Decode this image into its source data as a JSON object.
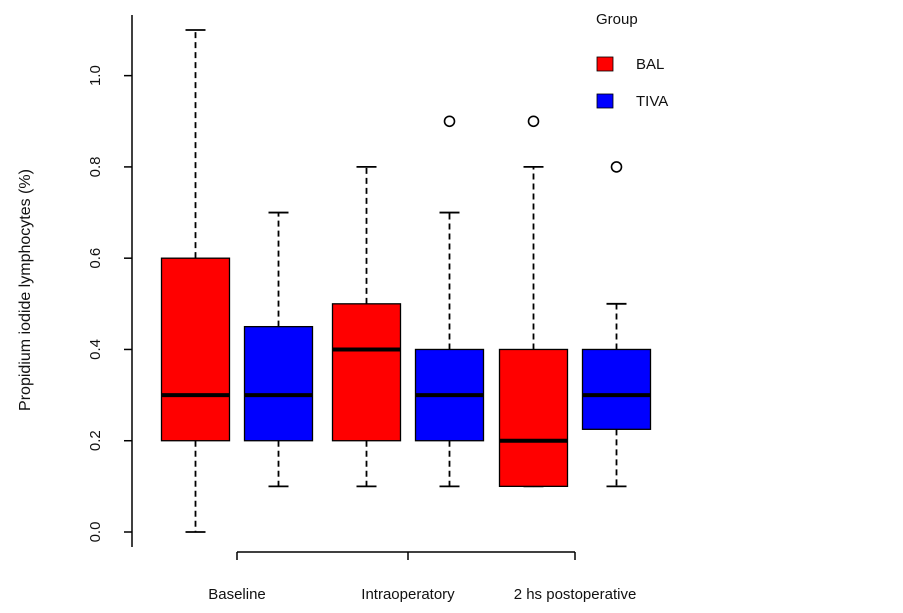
{
  "chart_data": {
    "type": "boxplot",
    "title": "",
    "xlabel": "",
    "ylabel": "Propidium iodide lymphocytes (%)",
    "ylim": [
      0.0,
      1.1
    ],
    "yticks": [
      "0.0",
      "0.2",
      "0.4",
      "0.6",
      "0.8",
      "1.0"
    ],
    "categories": [
      "Baseline",
      "Intraoperatory",
      "2 hs postoperative"
    ],
    "legend": {
      "title": "Group",
      "placement": "top-right",
      "entries": [
        {
          "name": "BAL",
          "color": "#ff0000"
        },
        {
          "name": "TIVA",
          "color": "#0000ff"
        }
      ]
    },
    "series": [
      {
        "name": "BAL",
        "color": "#ff0000",
        "boxes": [
          {
            "min": 0.0,
            "q1": 0.2,
            "median": 0.3,
            "q3": 0.6,
            "max": 1.1,
            "outliers": []
          },
          {
            "min": 0.1,
            "q1": 0.2,
            "median": 0.4,
            "q3": 0.5,
            "max": 0.8,
            "outliers": []
          },
          {
            "min": 0.1,
            "q1": 0.1,
            "median": 0.2,
            "q3": 0.4,
            "max": 0.8,
            "outliers": [
              0.9
            ]
          }
        ]
      },
      {
        "name": "TIVA",
        "color": "#0000ff",
        "boxes": [
          {
            "min": 0.1,
            "q1": 0.2,
            "median": 0.3,
            "q3": 0.45,
            "max": 0.7,
            "outliers": []
          },
          {
            "min": 0.1,
            "q1": 0.2,
            "median": 0.3,
            "q3": 0.4,
            "max": 0.7,
            "outliers": [
              0.9
            ]
          },
          {
            "min": 0.1,
            "q1": 0.225,
            "median": 0.3,
            "q3": 0.4,
            "max": 0.5,
            "outliers": [
              0.8
            ]
          }
        ]
      }
    ]
  }
}
